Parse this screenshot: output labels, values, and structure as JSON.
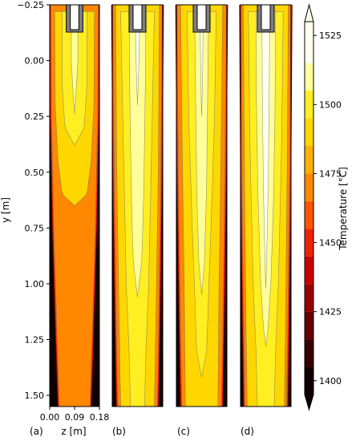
{
  "chart_data": [
    {
      "type": "heatmap",
      "panel_label": "(a)",
      "ylabel": "y [m]",
      "xlabel": "z [m]",
      "xlim": [
        0.0,
        0.18
      ],
      "ylim": [
        1.55,
        -0.25
      ],
      "yticks": [
        -0.25,
        0.0,
        0.25,
        0.5,
        0.75,
        1.0,
        1.25,
        1.5
      ],
      "ytick_labels": [
        "−0.25",
        "0.00",
        "0.25",
        "0.50",
        "0.75",
        "1.00",
        "1.25",
        "1.50"
      ],
      "xticks": [
        0.0,
        0.09,
        0.18
      ],
      "xtick_labels": [
        "0.00",
        "0.09",
        "0.18"
      ],
      "regions": [
        {
          "min_temp": 1465,
          "half_width": [
            [
              -0.25,
              0.085
            ],
            [
              0.25,
              0.083
            ],
            [
              0.75,
              0.075
            ],
            [
              1.25,
              0.063
            ],
            [
              1.55,
              0.055
            ]
          ]
        },
        {
          "min_temp": 1485,
          "half_width": [
            [
              -0.22,
              0.072
            ],
            [
              0.2,
              0.07
            ],
            [
              0.45,
              0.06
            ],
            [
              0.6,
              0.045
            ],
            [
              0.65,
              0.0
            ]
          ]
        },
        {
          "min_temp": 1495,
          "half_width": [
            [
              -0.22,
              0.045
            ],
            [
              0.1,
              0.045
            ],
            [
              0.3,
              0.035
            ],
            [
              0.38,
              0.0
            ]
          ]
        },
        {
          "min_temp": 1505,
          "half_width": [
            [
              -0.22,
              0.012
            ],
            [
              0.0,
              0.012
            ],
            [
              0.15,
              0.005
            ],
            [
              0.24,
              0.0
            ]
          ]
        }
      ]
    },
    {
      "type": "heatmap",
      "panel_label": "(b)",
      "ylim": [
        1.55,
        -0.25
      ],
      "regions": [
        {
          "min_temp": 1465,
          "half_width": [
            [
              -0.25,
              0.088
            ],
            [
              0.5,
              0.083
            ],
            [
              1.2,
              0.075
            ],
            [
              1.55,
              0.07
            ]
          ]
        },
        {
          "min_temp": 1485,
          "half_width": [
            [
              -0.25,
              0.078
            ],
            [
              0.5,
              0.074
            ],
            [
              1.2,
              0.065
            ],
            [
              1.55,
              0.06
            ]
          ]
        },
        {
          "min_temp": 1495,
          "half_width": [
            [
              -0.22,
              0.06
            ],
            [
              0.4,
              0.05
            ],
            [
              1.0,
              0.04
            ],
            [
              1.3,
              0.03
            ],
            [
              1.55,
              0.025
            ]
          ]
        },
        {
          "min_temp": 1505,
          "half_width": [
            [
              -0.22,
              0.03
            ],
            [
              0.1,
              0.028
            ],
            [
              0.6,
              0.022
            ],
            [
              0.9,
              0.015
            ],
            [
              1.06,
              0.0
            ]
          ]
        },
        {
          "min_temp": 1515,
          "half_width": [
            [
              -0.22,
              0.008
            ],
            [
              -0.05,
              0.006
            ],
            [
              0.1,
              0.003
            ],
            [
              0.2,
              0.0
            ]
          ]
        }
      ]
    },
    {
      "type": "heatmap",
      "panel_label": "(c)",
      "ylim": [
        1.55,
        -0.25
      ],
      "regions": [
        {
          "min_temp": 1465,
          "half_width": [
            [
              -0.25,
              0.088
            ],
            [
              0.5,
              0.083
            ],
            [
              1.2,
              0.075
            ],
            [
              1.55,
              0.07
            ]
          ]
        },
        {
          "min_temp": 1485,
          "half_width": [
            [
              -0.25,
              0.075
            ],
            [
              0.5,
              0.068
            ],
            [
              1.0,
              0.062
            ],
            [
              1.55,
              0.058
            ]
          ]
        },
        {
          "min_temp": 1495,
          "half_width": [
            [
              -0.22,
              0.052
            ],
            [
              0.3,
              0.045
            ],
            [
              0.8,
              0.032
            ],
            [
              1.0,
              0.026
            ],
            [
              1.3,
              0.018
            ],
            [
              1.42,
              0.0
            ]
          ]
        },
        {
          "min_temp": 1505,
          "half_width": [
            [
              -0.22,
              0.025
            ],
            [
              0.1,
              0.022
            ],
            [
              0.6,
              0.017
            ],
            [
              0.9,
              0.01
            ],
            [
              1.05,
              0.0
            ]
          ]
        },
        {
          "min_temp": 1515,
          "half_width": [
            [
              -0.22,
              0.006
            ],
            [
              0.1,
              0.003
            ],
            [
              0.25,
              0.0
            ]
          ]
        }
      ]
    },
    {
      "type": "heatmap",
      "panel_label": "(d)",
      "ylim": [
        1.55,
        -0.25
      ],
      "regions": [
        {
          "min_temp": 1465,
          "half_width": [
            [
              -0.25,
              0.089
            ],
            [
              0.5,
              0.085
            ],
            [
              1.2,
              0.078
            ],
            [
              1.55,
              0.074
            ]
          ]
        },
        {
          "min_temp": 1485,
          "half_width": [
            [
              -0.25,
              0.08
            ],
            [
              0.5,
              0.076
            ],
            [
              1.2,
              0.07
            ],
            [
              1.55,
              0.066
            ]
          ]
        },
        {
          "min_temp": 1495,
          "half_width": [
            [
              -0.22,
              0.062
            ],
            [
              0.4,
              0.056
            ],
            [
              1.0,
              0.045
            ],
            [
              1.3,
              0.035
            ],
            [
              1.55,
              0.03
            ]
          ]
        },
        {
          "min_temp": 1505,
          "half_width": [
            [
              -0.22,
              0.035
            ],
            [
              0.2,
              0.033
            ],
            [
              0.6,
              0.028
            ],
            [
              1.0,
              0.018
            ],
            [
              1.2,
              0.008
            ],
            [
              1.28,
              0.0
            ]
          ]
        },
        {
          "min_temp": 1515,
          "half_width": [
            [
              -0.22,
              0.014
            ],
            [
              0.2,
              0.012
            ],
            [
              0.6,
              0.008
            ],
            [
              0.9,
              0.003
            ],
            [
              1.02,
              0.0
            ]
          ]
        }
      ]
    }
  ],
  "colorbar": {
    "label": "Temperature [°C]",
    "min": 1395,
    "max": 1530,
    "tick_values": [
      1400,
      1425,
      1450,
      1475,
      1500,
      1525
    ],
    "tick_labels": [
      "1400",
      "1425",
      "1450",
      "1475",
      "1500",
      "1525"
    ],
    "levels": [
      1395,
      1405,
      1415,
      1425,
      1435,
      1445,
      1455,
      1465,
      1475,
      1485,
      1495,
      1505,
      1515,
      1530
    ],
    "colors": [
      "#110000",
      "#3a0000",
      "#660000",
      "#990000",
      "#cc0000",
      "#ee2200",
      "#ff5500",
      "#ff8800",
      "#ffb000",
      "#ffd700",
      "#ffee22",
      "#ffff99",
      "#ffffee"
    ],
    "extend": "both"
  }
}
